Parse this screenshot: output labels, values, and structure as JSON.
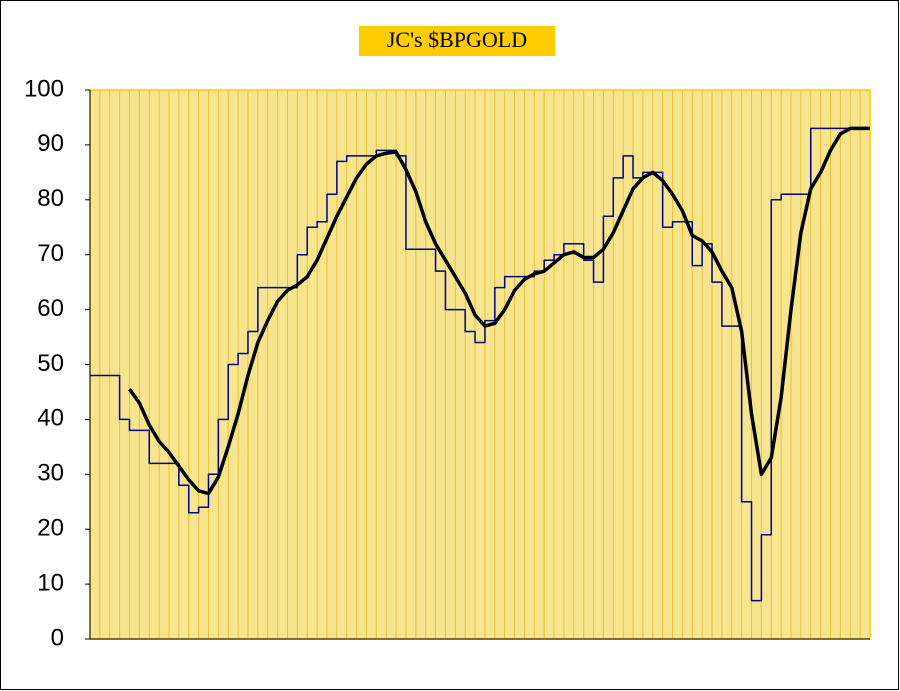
{
  "chart_data": {
    "type": "line",
    "title": "JC's $BPGOLD",
    "categories": [
      null,
      null,
      null,
      null,
      null,
      null,
      null,
      null,
      null,
      null,
      null,
      null,
      null,
      null,
      null,
      null,
      null,
      null,
      null,
      null,
      null,
      null,
      null,
      null,
      null,
      null,
      null,
      null,
      null,
      null,
      null,
      null,
      null,
      null,
      null,
      null,
      null,
      null,
      null,
      null,
      null,
      null,
      null,
      null,
      null,
      null,
      null,
      null,
      null,
      null,
      null,
      null,
      null,
      null,
      null,
      null,
      null,
      null,
      null,
      null,
      null,
      null,
      null,
      null,
      null,
      null,
      null,
      null,
      null,
      null,
      null,
      null,
      null,
      null,
      null,
      null,
      null,
      null,
      null,
      null
    ],
    "series": [
      {
        "color": "#000080",
        "step": true,
        "width": 1.5,
        "values": [
          48,
          48,
          48,
          40,
          38,
          38,
          32,
          32,
          32,
          28,
          23,
          24,
          30,
          40,
          50,
          52,
          56,
          64,
          64,
          64,
          64,
          70,
          75,
          76,
          81,
          87,
          88,
          88,
          88,
          89,
          89,
          88,
          71,
          71,
          71,
          67,
          60,
          60,
          56,
          54,
          58,
          64,
          66,
          66,
          66,
          67,
          69,
          70,
          72,
          72,
          69,
          65,
          77,
          84,
          88,
          84,
          85,
          85,
          75,
          76,
          76,
          68,
          72,
          65,
          57,
          57,
          25,
          7,
          19,
          80,
          81,
          81,
          81,
          93,
          93,
          93,
          93,
          93,
          93,
          93
        ]
      },
      {
        "color": "#000000",
        "step": false,
        "width": 3.5,
        "values": [
          null,
          null,
          null,
          null,
          45.5,
          43,
          39,
          36,
          34,
          31.5,
          29,
          27,
          26.5,
          29.5,
          35,
          41,
          48,
          54,
          58,
          61.5,
          63.5,
          64.5,
          66,
          69,
          73,
          77,
          80.5,
          84,
          86.5,
          88,
          88.5,
          88.7,
          85.5,
          81.5,
          76,
          72,
          69,
          66,
          63,
          59,
          57,
          57.5,
          60,
          63.5,
          65.5,
          66.5,
          67,
          68.5,
          70,
          70.5,
          69.5,
          69.5,
          71,
          74,
          78,
          82,
          84,
          85,
          83.5,
          81,
          78,
          73.5,
          72.5,
          70.5,
          67,
          64,
          56,
          41,
          30,
          33,
          44,
          60,
          74,
          82,
          85,
          89,
          92,
          93,
          93,
          93
        ]
      }
    ],
    "ylim": [
      0,
      100
    ],
    "yticks": [
      0,
      10,
      20,
      30,
      40,
      50,
      60,
      70,
      80,
      90,
      100
    ],
    "grid": true
  }
}
